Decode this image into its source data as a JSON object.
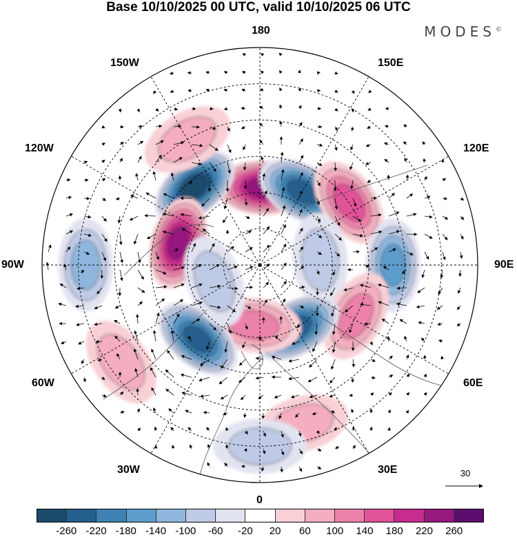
{
  "title": "Base 10/10/2025 00 UTC, valid 10/10/2025 06 UTC",
  "brand": "MODES",
  "brand_mark": "©",
  "longitude_labels": [
    {
      "id": "lon-180",
      "text": "180"
    },
    {
      "id": "lon-150e",
      "text": "150E"
    },
    {
      "id": "lon-120e",
      "text": "120E"
    },
    {
      "id": "lon-90e",
      "text": "90E"
    },
    {
      "id": "lon-60e",
      "text": "60E"
    },
    {
      "id": "lon-30e",
      "text": "30E"
    },
    {
      "id": "lon-0",
      "text": "0"
    },
    {
      "id": "lon-30w",
      "text": "30W"
    },
    {
      "id": "lon-60w",
      "text": "60W"
    },
    {
      "id": "lon-90w",
      "text": "90W"
    },
    {
      "id": "lon-120w",
      "text": "120W"
    },
    {
      "id": "lon-150w",
      "text": "150W"
    }
  ],
  "reference_vector": {
    "value": "30"
  },
  "colorbar": {
    "colors": [
      "#1b4b6b",
      "#255f8e",
      "#3d82b3",
      "#5d9dcb",
      "#8fb7dd",
      "#bfcbe6",
      "#e2e3f1",
      "#ffffff",
      "#f8d0d6",
      "#f4aebf",
      "#ec82aa",
      "#e25399",
      "#c72c8f",
      "#95197e",
      "#5c0e6e"
    ],
    "ticks": [
      "-260",
      "-220",
      "-180",
      "-140",
      "-100",
      "-60",
      "-20",
      "20",
      "60",
      "100",
      "140",
      "180",
      "220",
      "260"
    ]
  },
  "anomalies": [
    {
      "name": "positive-anomaly-pacific-north",
      "lon": 178,
      "colat": 32,
      "magnitude": 230
    },
    {
      "name": "negative-anomaly-siberia-east",
      "lon": 150,
      "colat": 35,
      "magnitude": -250
    },
    {
      "name": "negative-anomaly-bering",
      "lon": -140,
      "colat": 42,
      "magnitude": -260
    },
    {
      "name": "positive-anomaly-canada-west",
      "lon": -105,
      "colat": 35,
      "magnitude": 230
    },
    {
      "name": "positive-anomaly-east-siberia",
      "lon": 125,
      "colat": 45,
      "magnitude": 150
    },
    {
      "name": "negative-anomaly-siberia-central",
      "lon": 95,
      "colat": 25,
      "magnitude": -90
    },
    {
      "name": "negative-anomaly-central-asia",
      "lon": 90,
      "colat": 55,
      "magnitude": -170
    },
    {
      "name": "positive-anomaly-west-asia",
      "lon": 62,
      "colat": 45,
      "magnitude": 130
    },
    {
      "name": "negative-anomaly-scandinavia",
      "lon": 30,
      "colat": 30,
      "magnitude": -240
    },
    {
      "name": "positive-anomaly-greenland",
      "lon": -5,
      "colat": 25,
      "magnitude": 110
    },
    {
      "name": "negative-anomaly-north-atlantic",
      "lon": -40,
      "colat": 40,
      "magnitude": -250
    },
    {
      "name": "negative-anomaly-hudson",
      "lon": -70,
      "colat": 20,
      "magnitude": -90
    },
    {
      "name": "negative-anomaly-north-america",
      "lon": -90,
      "colat": 72,
      "magnitude": -120
    },
    {
      "name": "positive-anomaly-gulf-alaska",
      "lon": -150,
      "colat": 60,
      "magnitude": 60
    },
    {
      "name": "positive-anomaly-north-africa",
      "lon": 15,
      "colat": 68,
      "magnitude": 60
    },
    {
      "name": "negative-anomaly-mediterranean",
      "lon": 0,
      "colat": 75,
      "magnitude": -60
    },
    {
      "name": "positive-anomaly-subtropical-atlantic",
      "lon": -55,
      "colat": 70,
      "magnitude": 60
    }
  ]
}
